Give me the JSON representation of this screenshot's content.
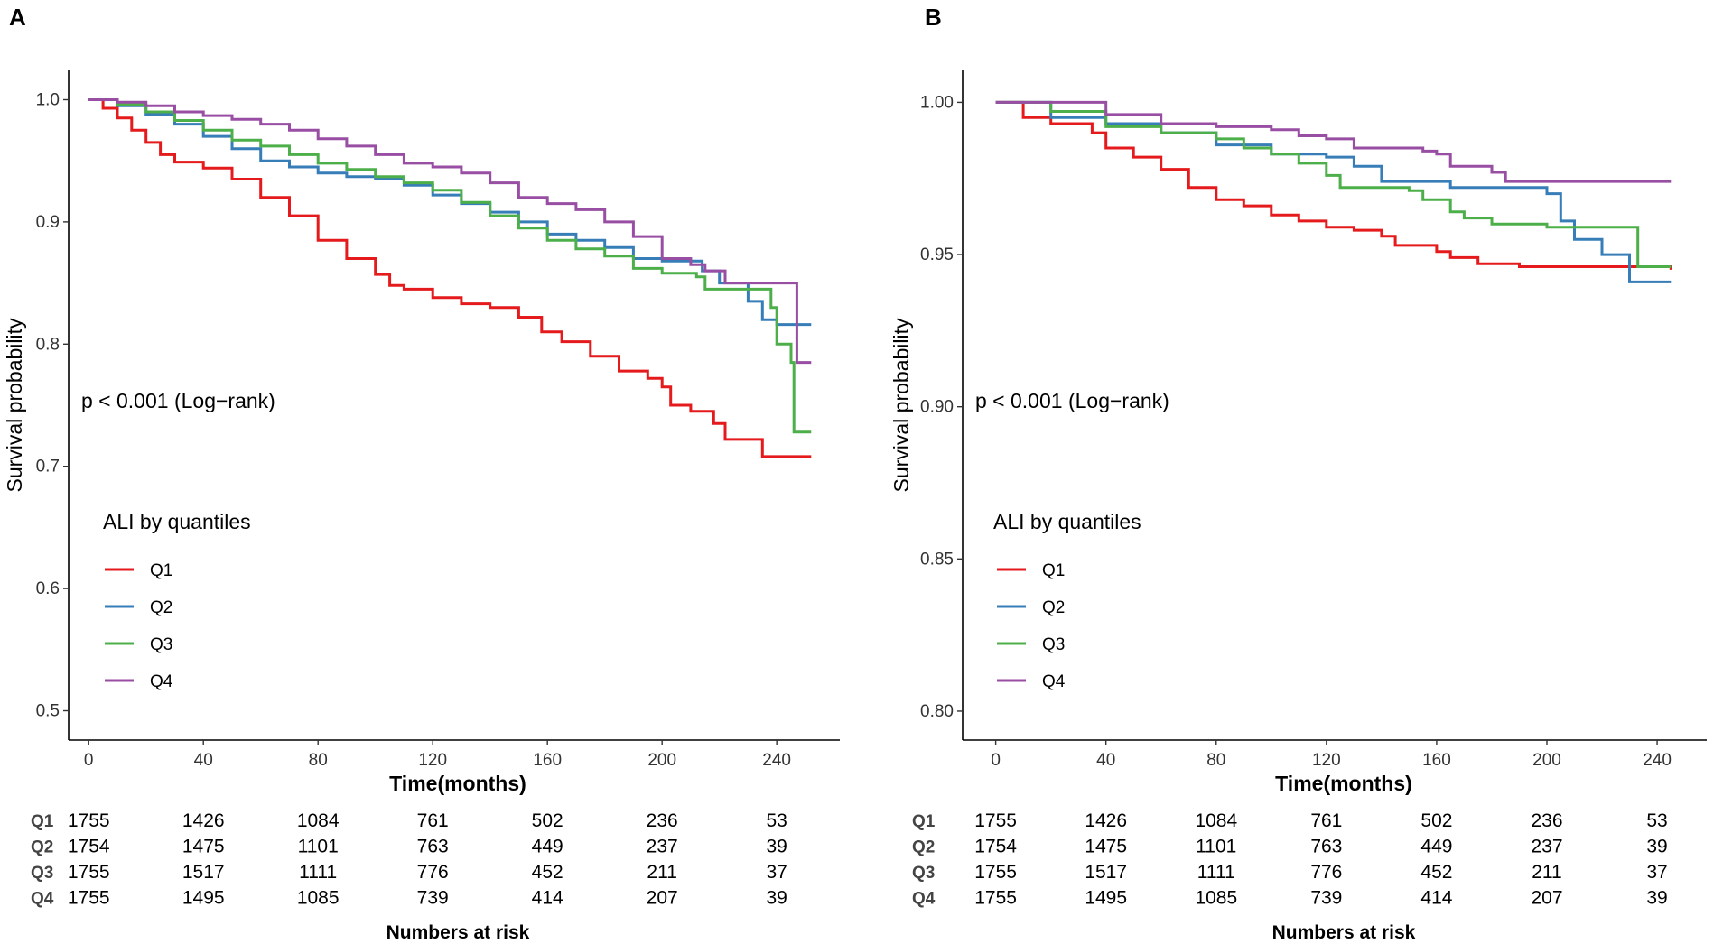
{
  "chart_data": [
    {
      "type": "line",
      "panel": "A",
      "xlabel": "Time(months)",
      "ylabel": "Survival probability",
      "xlim": [
        -7,
        262
      ],
      "ylim": [
        0.476,
        1.024
      ],
      "xticks": [
        0,
        40,
        80,
        120,
        160,
        200,
        240
      ],
      "yticks": [
        "0.5",
        "0.6",
        "0.7",
        "0.8",
        "0.9",
        "1.0"
      ],
      "annotation": "p < 0.001 (Log−rank)",
      "legend_title": "ALI by quantiles",
      "series": [
        {
          "name": "Q1",
          "color": "#E41A1C",
          "points": [
            [
              0,
              1.0
            ],
            [
              5,
              0.993
            ],
            [
              10,
              0.985
            ],
            [
              15,
              0.975
            ],
            [
              20,
              0.965
            ],
            [
              25,
              0.955
            ],
            [
              30,
              0.949
            ],
            [
              40,
              0.944
            ],
            [
              50,
              0.935
            ],
            [
              60,
              0.92
            ],
            [
              70,
              0.905
            ],
            [
              80,
              0.885
            ],
            [
              90,
              0.87
            ],
            [
              100,
              0.857
            ],
            [
              105,
              0.848
            ],
            [
              110,
              0.845
            ],
            [
              120,
              0.838
            ],
            [
              130,
              0.833
            ],
            [
              140,
              0.83
            ],
            [
              150,
              0.822
            ],
            [
              158,
              0.81
            ],
            [
              165,
              0.802
            ],
            [
              175,
              0.79
            ],
            [
              185,
              0.778
            ],
            [
              195,
              0.772
            ],
            [
              200,
              0.765
            ],
            [
              203,
              0.75
            ],
            [
              210,
              0.745
            ],
            [
              218,
              0.735
            ],
            [
              222,
              0.722
            ],
            [
              235,
              0.708
            ],
            [
              252,
              0.708
            ]
          ]
        },
        {
          "name": "Q2",
          "color": "#377EB8",
          "points": [
            [
              0,
              1.0
            ],
            [
              10,
              0.995
            ],
            [
              20,
              0.988
            ],
            [
              30,
              0.98
            ],
            [
              40,
              0.97
            ],
            [
              50,
              0.96
            ],
            [
              60,
              0.95
            ],
            [
              70,
              0.945
            ],
            [
              80,
              0.94
            ],
            [
              90,
              0.937
            ],
            [
              100,
              0.935
            ],
            [
              110,
              0.93
            ],
            [
              120,
              0.922
            ],
            [
              130,
              0.915
            ],
            [
              140,
              0.908
            ],
            [
              150,
              0.9
            ],
            [
              160,
              0.89
            ],
            [
              170,
              0.885
            ],
            [
              180,
              0.879
            ],
            [
              190,
              0.87
            ],
            [
              200,
              0.868
            ],
            [
              210,
              0.868
            ],
            [
              214,
              0.86
            ],
            [
              220,
              0.85
            ],
            [
              230,
              0.835
            ],
            [
              235,
              0.82
            ],
            [
              240,
              0.816
            ],
            [
              252,
              0.816
            ]
          ]
        },
        {
          "name": "Q3",
          "color": "#4DAF4A",
          "points": [
            [
              0,
              1.0
            ],
            [
              10,
              0.996
            ],
            [
              20,
              0.99
            ],
            [
              30,
              0.983
            ],
            [
              40,
              0.975
            ],
            [
              50,
              0.967
            ],
            [
              60,
              0.962
            ],
            [
              70,
              0.955
            ],
            [
              80,
              0.948
            ],
            [
              90,
              0.943
            ],
            [
              100,
              0.937
            ],
            [
              110,
              0.932
            ],
            [
              120,
              0.926
            ],
            [
              130,
              0.916
            ],
            [
              140,
              0.905
            ],
            [
              150,
              0.895
            ],
            [
              160,
              0.885
            ],
            [
              170,
              0.878
            ],
            [
              180,
              0.872
            ],
            [
              190,
              0.862
            ],
            [
              200,
              0.858
            ],
            [
              212,
              0.855
            ],
            [
              215,
              0.845
            ],
            [
              230,
              0.845
            ],
            [
              238,
              0.83
            ],
            [
              240,
              0.8
            ],
            [
              245,
              0.785
            ],
            [
              246,
              0.728
            ],
            [
              252,
              0.728
            ]
          ]
        },
        {
          "name": "Q4",
          "color": "#984EA3",
          "points": [
            [
              0,
              1.0
            ],
            [
              10,
              0.998
            ],
            [
              20,
              0.995
            ],
            [
              30,
              0.99
            ],
            [
              40,
              0.987
            ],
            [
              50,
              0.984
            ],
            [
              60,
              0.98
            ],
            [
              70,
              0.975
            ],
            [
              80,
              0.968
            ],
            [
              90,
              0.962
            ],
            [
              100,
              0.955
            ],
            [
              110,
              0.948
            ],
            [
              120,
              0.945
            ],
            [
              130,
              0.94
            ],
            [
              140,
              0.932
            ],
            [
              150,
              0.92
            ],
            [
              160,
              0.915
            ],
            [
              170,
              0.91
            ],
            [
              180,
              0.9
            ],
            [
              190,
              0.888
            ],
            [
              200,
              0.87
            ],
            [
              210,
              0.865
            ],
            [
              215,
              0.86
            ],
            [
              222,
              0.85
            ],
            [
              245,
              0.85
            ],
            [
              247,
              0.785
            ],
            [
              252,
              0.785
            ]
          ]
        }
      ],
      "risk_table": {
        "title": "Numbers at risk",
        "times": [
          0,
          40,
          80,
          120,
          160,
          200,
          240
        ],
        "rows": [
          {
            "label": "Q1",
            "values": [
              "1755",
              "1426",
              "1084",
              "761",
              "502",
              "236",
              "53"
            ]
          },
          {
            "label": "Q2",
            "values": [
              "1754",
              "1475",
              "1101",
              "763",
              "449",
              "237",
              "39"
            ]
          },
          {
            "label": "Q3",
            "values": [
              "1755",
              "1517",
              "1111",
              "776",
              "452",
              "211",
              "37"
            ]
          },
          {
            "label": "Q4",
            "values": [
              "1755",
              "1495",
              "1085",
              "739",
              "414",
              "207",
              "39"
            ]
          }
        ]
      }
    },
    {
      "type": "line",
      "panel": "B",
      "xlabel": "Time(months)",
      "ylabel": "Survival probability",
      "xlim": [
        -12,
        258
      ],
      "ylim": [
        0.7905,
        1.0105
      ],
      "xticks": [
        0,
        40,
        80,
        120,
        160,
        200,
        240
      ],
      "yticks": [
        "0.80",
        "0.85",
        "0.90",
        "0.95",
        "1.00"
      ],
      "annotation": "p < 0.001 (Log−rank)",
      "legend_title": "ALI by quantiles",
      "series": [
        {
          "name": "Q1",
          "color": "#E41A1C",
          "points": [
            [
              0,
              1.0
            ],
            [
              10,
              0.995
            ],
            [
              20,
              0.993
            ],
            [
              35,
              0.99
            ],
            [
              40,
              0.985
            ],
            [
              50,
              0.982
            ],
            [
              60,
              0.978
            ],
            [
              70,
              0.972
            ],
            [
              80,
              0.968
            ],
            [
              90,
              0.966
            ],
            [
              100,
              0.963
            ],
            [
              110,
              0.961
            ],
            [
              120,
              0.959
            ],
            [
              130,
              0.958
            ],
            [
              140,
              0.956
            ],
            [
              145,
              0.953
            ],
            [
              160,
              0.951
            ],
            [
              165,
              0.949
            ],
            [
              175,
              0.947
            ],
            [
              190,
              0.946
            ],
            [
              220,
              0.946
            ],
            [
              245,
              0.945
            ]
          ]
        },
        {
          "name": "Q2",
          "color": "#377EB8",
          "points": [
            [
              0,
              1.0
            ],
            [
              20,
              0.995
            ],
            [
              40,
              0.993
            ],
            [
              60,
              0.99
            ],
            [
              80,
              0.986
            ],
            [
              100,
              0.983
            ],
            [
              120,
              0.982
            ],
            [
              130,
              0.979
            ],
            [
              140,
              0.974
            ],
            [
              160,
              0.974
            ],
            [
              165,
              0.972
            ],
            [
              200,
              0.97
            ],
            [
              205,
              0.961
            ],
            [
              210,
              0.955
            ],
            [
              220,
              0.95
            ],
            [
              230,
              0.941
            ],
            [
              245,
              0.941
            ]
          ]
        },
        {
          "name": "Q3",
          "color": "#4DAF4A",
          "points": [
            [
              0,
              1.0
            ],
            [
              20,
              0.997
            ],
            [
              40,
              0.992
            ],
            [
              60,
              0.99
            ],
            [
              80,
              0.988
            ],
            [
              90,
              0.985
            ],
            [
              100,
              0.983
            ],
            [
              110,
              0.98
            ],
            [
              120,
              0.976
            ],
            [
              125,
              0.972
            ],
            [
              140,
              0.972
            ],
            [
              150,
              0.971
            ],
            [
              155,
              0.968
            ],
            [
              165,
              0.964
            ],
            [
              170,
              0.962
            ],
            [
              180,
              0.96
            ],
            [
              200,
              0.959
            ],
            [
              213,
              0.959
            ],
            [
              225,
              0.959
            ],
            [
              233,
              0.946
            ],
            [
              245,
              0.946
            ]
          ]
        },
        {
          "name": "Q4",
          "color": "#984EA3",
          "points": [
            [
              0,
              1.0
            ],
            [
              15,
              1.0
            ],
            [
              40,
              0.996
            ],
            [
              60,
              0.993
            ],
            [
              80,
              0.992
            ],
            [
              100,
              0.991
            ],
            [
              110,
              0.989
            ],
            [
              120,
              0.988
            ],
            [
              130,
              0.985
            ],
            [
              140,
              0.985
            ],
            [
              155,
              0.984
            ],
            [
              160,
              0.983
            ],
            [
              165,
              0.979
            ],
            [
              180,
              0.977
            ],
            [
              185,
              0.974
            ],
            [
              245,
              0.974
            ]
          ]
        }
      ],
      "risk_table": {
        "title": "Numbers at risk",
        "times": [
          0,
          40,
          80,
          120,
          160,
          200,
          240
        ],
        "rows": [
          {
            "label": "Q1",
            "values": [
              "1755",
              "1426",
              "1084",
              "761",
              "502",
              "236",
              "53"
            ]
          },
          {
            "label": "Q2",
            "values": [
              "1754",
              "1475",
              "1101",
              "763",
              "449",
              "237",
              "39"
            ]
          },
          {
            "label": "Q3",
            "values": [
              "1755",
              "1517",
              "1111",
              "776",
              "452",
              "211",
              "37"
            ]
          },
          {
            "label": "Q4",
            "values": [
              "1755",
              "1495",
              "1085",
              "739",
              "414",
              "207",
              "39"
            ]
          }
        ]
      }
    }
  ]
}
